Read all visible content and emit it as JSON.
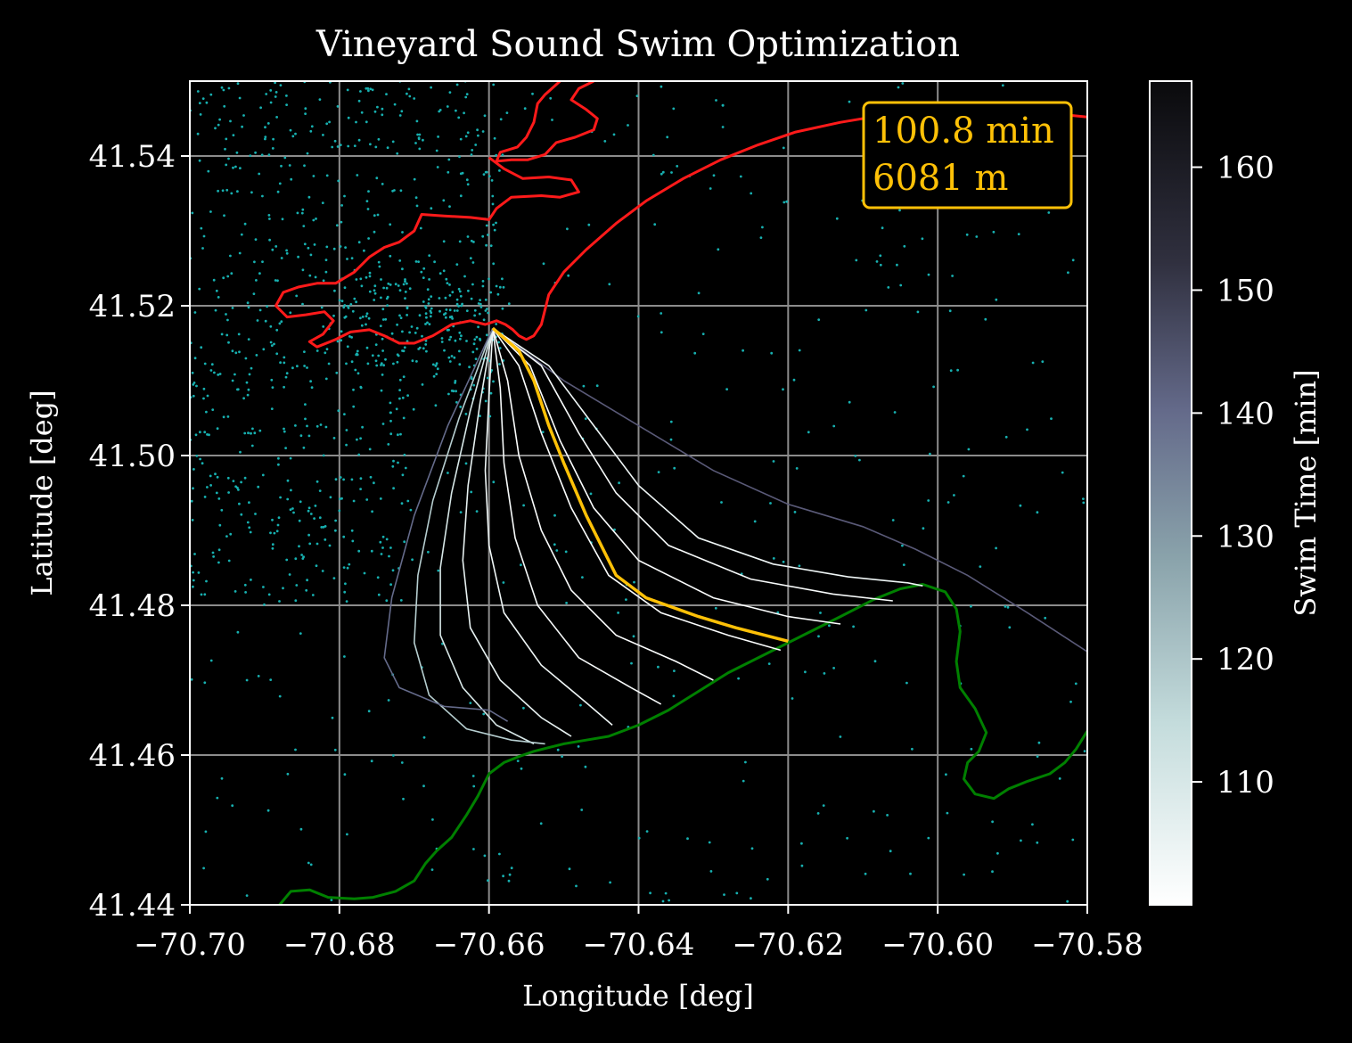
{
  "chart_data": {
    "type": "line",
    "title": "Vineyard Sound Swim Optimization",
    "xlabel": "Longitude [deg]",
    "ylabel": "Latitude [deg]",
    "xlim": [
      -70.7,
      -70.58
    ],
    "ylim": [
      41.44,
      41.55
    ],
    "xticks": [
      -70.7,
      -70.68,
      -70.66,
      -70.64,
      -70.62,
      -70.6,
      -70.58
    ],
    "xtick_labels": [
      "−70.70",
      "−70.68",
      "−70.66",
      "−70.64",
      "−70.62",
      "−70.60",
      "−70.58"
    ],
    "yticks": [
      41.44,
      41.46,
      41.48,
      41.5,
      41.52,
      41.54
    ],
    "ytick_labels": [
      "41.44",
      "41.46",
      "41.48",
      "41.50",
      "41.52",
      "41.54"
    ],
    "grid": true,
    "annotation": {
      "line1": "100.8 min",
      "line2": "6081 m",
      "placement": "top-right",
      "color": "#ffc107"
    },
    "colorbar": {
      "label": "Swim Time [min]",
      "range": [
        100,
        167
      ],
      "ticks": [
        110,
        120,
        130,
        140,
        150,
        160
      ],
      "tick_labels": [
        "110",
        "120",
        "130",
        "140",
        "150",
        "160"
      ],
      "colormap": "bone_r"
    },
    "start_point": [
      -70.6595,
      41.517
    ],
    "optimal_route": {
      "color": "#ffc107",
      "time_min": 100.8,
      "distance_m": 6081,
      "points": [
        [
          -70.6595,
          41.517
        ],
        [
          -70.656,
          41.514
        ],
        [
          -70.654,
          41.51
        ],
        [
          -70.652,
          41.504
        ],
        [
          -70.65,
          41.499
        ],
        [
          -70.647,
          41.492
        ],
        [
          -70.643,
          41.484
        ],
        [
          -70.639,
          41.481
        ],
        [
          -70.632,
          41.4785
        ],
        [
          -70.627,
          41.477
        ],
        [
          -70.62,
          41.4752
        ]
      ]
    },
    "routes": [
      {
        "time": 166,
        "points": [
          [
            -70.6595,
            41.517
          ],
          [
            -70.65,
            41.51
          ],
          [
            -70.64,
            41.504
          ],
          [
            -70.63,
            41.498
          ],
          [
            -70.62,
            41.4935
          ],
          [
            -70.61,
            41.4905
          ],
          [
            -70.603,
            41.4875
          ],
          [
            -70.596,
            41.484
          ],
          [
            -70.588,
            41.479
          ],
          [
            -70.58,
            41.4738
          ]
        ]
      },
      {
        "time": 104,
        "points": [
          [
            -70.6595,
            41.517
          ],
          [
            -70.652,
            41.512
          ],
          [
            -70.646,
            41.504
          ],
          [
            -70.64,
            41.496
          ],
          [
            -70.632,
            41.489
          ],
          [
            -70.622,
            41.4855
          ],
          [
            -70.612,
            41.4838
          ],
          [
            -70.604,
            41.483
          ],
          [
            -70.602,
            41.4826
          ]
        ]
      },
      {
        "time": 102,
        "points": [
          [
            -70.6595,
            41.517
          ],
          [
            -70.653,
            41.512
          ],
          [
            -70.648,
            41.503
          ],
          [
            -70.643,
            41.495
          ],
          [
            -70.636,
            41.488
          ],
          [
            -70.625,
            41.4835
          ],
          [
            -70.614,
            41.4815
          ],
          [
            -70.606,
            41.4806
          ]
        ]
      },
      {
        "time": 101,
        "points": [
          [
            -70.6595,
            41.517
          ],
          [
            -70.6545,
            41.512
          ],
          [
            -70.6505,
            41.502
          ],
          [
            -70.646,
            41.493
          ],
          [
            -70.64,
            41.486
          ],
          [
            -70.63,
            41.481
          ],
          [
            -70.62,
            41.4785
          ],
          [
            -70.613,
            41.4775
          ]
        ]
      },
      {
        "time": 101,
        "points": [
          [
            -70.6595,
            41.517
          ],
          [
            -70.656,
            41.512
          ],
          [
            -70.653,
            41.503
          ],
          [
            -70.649,
            41.493
          ],
          [
            -70.644,
            41.484
          ],
          [
            -70.637,
            41.479
          ],
          [
            -70.628,
            41.476
          ],
          [
            -70.621,
            41.474
          ]
        ]
      },
      {
        "time": 101,
        "points": [
          [
            -70.6595,
            41.517
          ],
          [
            -70.6575,
            41.51
          ],
          [
            -70.656,
            41.5
          ],
          [
            -70.653,
            41.49
          ],
          [
            -70.649,
            41.482
          ],
          [
            -70.643,
            41.476
          ],
          [
            -70.635,
            41.4725
          ],
          [
            -70.63,
            41.47
          ]
        ]
      },
      {
        "time": 102,
        "points": [
          [
            -70.6595,
            41.517
          ],
          [
            -70.6585,
            41.509
          ],
          [
            -70.658,
            41.499
          ],
          [
            -70.6565,
            41.489
          ],
          [
            -70.6535,
            41.48
          ],
          [
            -70.648,
            41.473
          ],
          [
            -70.641,
            41.469
          ],
          [
            -70.637,
            41.4668
          ]
        ]
      },
      {
        "time": 104,
        "points": [
          [
            -70.6595,
            41.517
          ],
          [
            -70.66,
            41.508
          ],
          [
            -70.6605,
            41.498
          ],
          [
            -70.66,
            41.488
          ],
          [
            -70.658,
            41.479
          ],
          [
            -70.653,
            41.472
          ],
          [
            -70.647,
            41.467
          ],
          [
            -70.6435,
            41.464
          ]
        ]
      },
      {
        "time": 106,
        "points": [
          [
            -70.6595,
            41.517
          ],
          [
            -70.6612,
            41.507
          ],
          [
            -70.6628,
            41.496
          ],
          [
            -70.6635,
            41.486
          ],
          [
            -70.6625,
            41.477
          ],
          [
            -70.6585,
            41.47
          ],
          [
            -70.653,
            41.465
          ],
          [
            -70.649,
            41.4625
          ]
        ]
      },
      {
        "time": 110,
        "points": [
          [
            -70.6595,
            41.517
          ],
          [
            -70.6625,
            41.506
          ],
          [
            -70.665,
            41.495
          ],
          [
            -70.6665,
            41.485
          ],
          [
            -70.6665,
            41.476
          ],
          [
            -70.6635,
            41.469
          ],
          [
            -70.659,
            41.464
          ],
          [
            -70.654,
            41.4615
          ]
        ]
      },
      {
        "time": 118,
        "points": [
          [
            -70.6595,
            41.517
          ],
          [
            -70.664,
            41.505
          ],
          [
            -70.6675,
            41.494
          ],
          [
            -70.6695,
            41.484
          ],
          [
            -70.67,
            41.475
          ],
          [
            -70.668,
            41.468
          ],
          [
            -70.663,
            41.4635
          ],
          [
            -70.657,
            41.462
          ],
          [
            -70.6525,
            41.4615
          ]
        ]
      },
      {
        "time": 140,
        "points": [
          [
            -70.6595,
            41.517
          ],
          [
            -70.6655,
            41.504
          ],
          [
            -70.67,
            41.492
          ],
          [
            -70.673,
            41.481
          ],
          [
            -70.674,
            41.473
          ],
          [
            -70.672,
            41.469
          ],
          [
            -70.666,
            41.4665
          ],
          [
            -70.66,
            41.466
          ],
          [
            -70.6575,
            41.4645
          ]
        ]
      }
    ],
    "coastlines": [
      {
        "name": "north shore",
        "color": "#ff1a1a",
        "points": [
          [
            -70.646,
            41.55
          ],
          [
            -70.648,
            41.549
          ],
          [
            -70.649,
            41.5475
          ],
          [
            -70.647,
            41.5462
          ],
          [
            -70.6455,
            41.545
          ],
          [
            -70.646,
            41.5435
          ],
          [
            -70.6485,
            41.5425
          ],
          [
            -70.651,
            41.5418
          ],
          [
            -70.6525,
            41.5402
          ],
          [
            -70.6548,
            41.5395
          ],
          [
            -70.657,
            41.5395
          ],
          [
            -70.659,
            41.5393
          ],
          [
            -70.6585,
            41.5405
          ],
          [
            -70.6562,
            41.5412
          ],
          [
            -70.655,
            41.5425
          ],
          [
            -70.654,
            41.5445
          ],
          [
            -70.6535,
            41.547
          ],
          [
            -70.6525,
            41.5482
          ],
          [
            -70.6505,
            41.55
          ]
        ]
      },
      {
        "name": "north shore",
        "color": "#ff1a1a",
        "points": [
          [
            -70.66,
            41.5398
          ],
          [
            -70.658,
            41.5383
          ],
          [
            -70.6555,
            41.537
          ],
          [
            -70.652,
            41.5372
          ],
          [
            -70.649,
            41.5368
          ],
          [
            -70.648,
            41.5352
          ],
          [
            -70.6505,
            41.5345
          ],
          [
            -70.653,
            41.5347
          ],
          [
            -70.657,
            41.5345
          ],
          [
            -70.659,
            41.533
          ],
          [
            -70.66,
            41.5315
          ],
          [
            -70.6625,
            41.5318
          ],
          [
            -70.666,
            41.532
          ],
          [
            -70.669,
            41.5322
          ],
          [
            -70.67,
            41.53
          ],
          [
            -70.672,
            41.5285
          ],
          [
            -70.674,
            41.5278
          ],
          [
            -70.676,
            41.5265
          ],
          [
            -70.678,
            41.5245
          ],
          [
            -70.6805,
            41.523
          ],
          [
            -70.683,
            41.523
          ],
          [
            -70.6855,
            41.5225
          ],
          [
            -70.6875,
            41.5218
          ],
          [
            -70.6885,
            41.52
          ],
          [
            -70.687,
            41.5185
          ],
          [
            -70.6845,
            41.5188
          ],
          [
            -70.682,
            41.5192
          ],
          [
            -70.6808,
            41.518
          ],
          [
            -70.6822,
            41.5162
          ],
          [
            -70.684,
            41.5152
          ],
          [
            -70.683,
            41.5145
          ],
          [
            -70.6805,
            41.5155
          ],
          [
            -70.6785,
            41.5165
          ],
          [
            -70.676,
            41.5168
          ],
          [
            -70.674,
            41.516
          ],
          [
            -70.672,
            41.515
          ],
          [
            -70.67,
            41.515
          ],
          [
            -70.6675,
            41.516
          ],
          [
            -70.665,
            41.5175
          ],
          [
            -70.6625,
            41.518
          ],
          [
            -70.6605,
            41.5175
          ],
          [
            -70.659,
            41.518
          ],
          [
            -70.6578,
            41.5175
          ],
          [
            -70.6568,
            41.5168
          ],
          [
            -70.656,
            41.516
          ],
          [
            -70.655,
            41.5155
          ],
          [
            -70.654,
            41.516
          ],
          [
            -70.653,
            41.5175
          ],
          [
            -70.6525,
            41.5195
          ],
          [
            -70.652,
            41.5215
          ],
          [
            -70.65,
            41.5245
          ],
          [
            -70.647,
            41.5275
          ],
          [
            -70.643,
            41.531
          ],
          [
            -70.639,
            41.534
          ],
          [
            -70.634,
            41.537
          ],
          [
            -70.629,
            41.5395
          ],
          [
            -70.624,
            41.5415
          ],
          [
            -70.619,
            41.5432
          ],
          [
            -70.613,
            41.5445
          ],
          [
            -70.607,
            41.5455
          ],
          [
            -70.6,
            41.546
          ],
          [
            -70.594,
            41.5462
          ],
          [
            -70.588,
            41.546
          ],
          [
            -70.583,
            41.5455
          ],
          [
            -70.58,
            41.5452
          ]
        ]
      },
      {
        "name": "south shore",
        "color": "#008000",
        "points": [
          [
            -70.688,
            41.44
          ],
          [
            -70.6865,
            41.4418
          ],
          [
            -70.684,
            41.442
          ],
          [
            -70.6815,
            41.441
          ],
          [
            -70.678,
            41.4408
          ],
          [
            -70.6755,
            41.441
          ],
          [
            -70.6725,
            41.4418
          ],
          [
            -70.67,
            41.4432
          ],
          [
            -70.6685,
            41.4455
          ],
          [
            -70.667,
            41.4472
          ],
          [
            -70.665,
            41.449
          ],
          [
            -70.663,
            41.452
          ],
          [
            -70.6615,
            41.4545
          ],
          [
            -70.66,
            41.4575
          ],
          [
            -70.658,
            41.459
          ],
          [
            -70.656,
            41.4598
          ],
          [
            -70.654,
            41.4605
          ],
          [
            -70.652,
            41.461
          ],
          [
            -70.65,
            41.4615
          ],
          [
            -70.647,
            41.462
          ],
          [
            -70.644,
            41.4625
          ],
          [
            -70.64,
            41.464
          ],
          [
            -70.636,
            41.466
          ],
          [
            -70.632,
            41.4685
          ],
          [
            -70.628,
            41.471
          ],
          [
            -70.623,
            41.4735
          ],
          [
            -70.618,
            41.476
          ],
          [
            -70.613,
            41.4785
          ],
          [
            -70.6085,
            41.4808
          ],
          [
            -70.605,
            41.4822
          ],
          [
            -70.602,
            41.4828
          ],
          [
            -70.599,
            41.4818
          ],
          [
            -70.5975,
            41.4795
          ],
          [
            -70.597,
            41.4765
          ],
          [
            -70.5975,
            41.4725
          ],
          [
            -70.597,
            41.469
          ],
          [
            -70.595,
            41.4662
          ],
          [
            -70.5935,
            41.463
          ],
          [
            -70.5945,
            41.4605
          ],
          [
            -70.596,
            41.459
          ],
          [
            -70.5965,
            41.4568
          ],
          [
            -70.595,
            41.4548
          ],
          [
            -70.5925,
            41.4542
          ],
          [
            -70.5905,
            41.4555
          ],
          [
            -70.588,
            41.4565
          ],
          [
            -70.585,
            41.4575
          ],
          [
            -70.583,
            41.459
          ],
          [
            -70.5815,
            41.4608
          ],
          [
            -70.58,
            41.4632
          ]
        ]
      }
    ],
    "mesh_nodes": {
      "color": "#17b0b0",
      "count": 1200
    }
  }
}
